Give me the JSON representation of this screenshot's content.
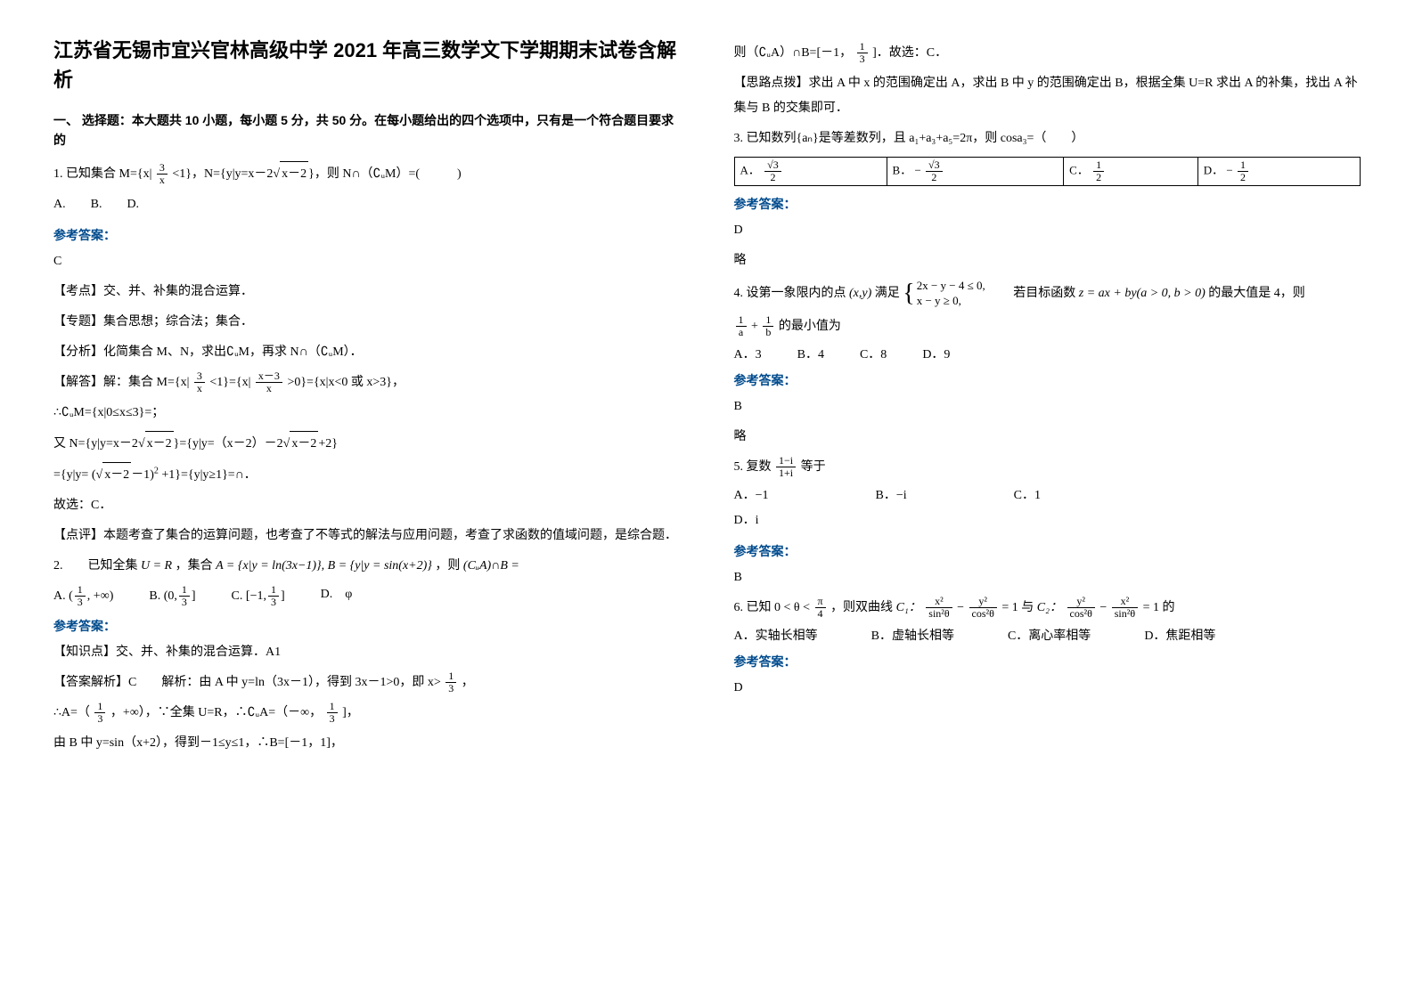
{
  "title": "江苏省无锡市宜兴官林高级中学 2021 年高三数学文下学期期末试卷含解析",
  "section1_head": "一、 选择题：本大题共 10 小题，每小题 5 分，共 50 分。在每小题给出的四个选项中，只有是一个符合题目要求的",
  "answer_label": "参考答案：",
  "q1_stem_a": "1. 已知集合 M={x|",
  "q1_stem_b": "<1}，N={y|y=x－2",
  "q1_stem_c": "}，则 N∩（∁ᵤM）=(　　　)",
  "q1_frac_num": "3",
  "q1_frac_den": "x",
  "q1_sqrt": "x－2",
  "q1_opts": "A.　　B.　　D.",
  "q1_ans": "C",
  "q1_p1": "【考点】交、并、补集的混合运算．",
  "q1_p2": "【专题】集合思想；综合法；集合．",
  "q1_p3": "【分析】化简集合 M、N，求出∁ᵤM，再求 N∩（∁ᵤM）．",
  "q1_s1_a": "【解答】解：集合 M={x|",
  "q1_s1_b": "<1}={x|",
  "q1_s1_c": ">0}={x|x<0 或 x>3}，",
  "q1_s1_frac2_num": "x－3",
  "q1_s1_frac2_den": "x",
  "q1_s2": "∴∁ᵤM={x|0≤x≤3}=；",
  "q1_s3_a": "又 N={y|y=x－2",
  "q1_s3_b": "}={y|y=（x－2）－2",
  "q1_s3_c": "+2}",
  "q1_s4_a": "={y|y=",
  "q1_s4_b": "+1}={y|y≥1}=∩．",
  "q1_s4_sqrt": "x－2",
  "q1_s4_minus1": "－1",
  "q1_s4_sq": "2",
  "q1_s5": "故选：C．",
  "q1_s6": "【点评】本题考查了集合的运算问题，也考查了不等式的解法与应用问题，考查了求函数的值域问题，是综合题．",
  "q2_a": "2.　　已知全集",
  "q2_b": "，集合",
  "q2_c": "，则",
  "q2_U": "U = R",
  "q2_A": "A = {x|y = ln(3x−1)}, B = {y|y = sin(x+2)}",
  "q2_end": "(CᵤA)∩B =",
  "q2_optA_a": "A.",
  "q2_optB_a": "B.",
  "q2_optC_a": "C.",
  "q2_optD_a": "D.　φ",
  "q2_optA_frac_n": "1",
  "q2_optA_frac_d": "3",
  "q2_optA_tail": ", +∞",
  "q2_optB_l": "0,",
  "q2_optB_frac_n": "1",
  "q2_optB_frac_d": "3",
  "q2_optC_l": "−1,",
  "q2_optC_frac_n": "1",
  "q2_optC_frac_d": "3",
  "q2_p1": "【知识点】交、并、补集的混合运算．A1",
  "q2_s1_a": "【答案解析】C　　解析：由 A 中 y=ln（3x－1），得到 3x－1>0，即 x>",
  "q2_s1_b": "，",
  "q2_s1_frac_n": "1",
  "q2_s1_frac_d": "3",
  "q2_s2_a": "∴A=（",
  "q2_s2_b": "，+∞），∵全集 U=R，∴∁ᵤA=（－∞，",
  "q2_s2_c": "]，",
  "q2_s3": "由 B 中 y=sin（x+2），得到－1≤y≤1，∴B=[－1，1]，",
  "rc1_a": "则（∁ᵤA）∩B=[－1，",
  "rc1_b": "]．故选：C．",
  "rc1_frac_n": "1",
  "rc1_frac_d": "3",
  "rc2": "【思路点拨】求出 A 中 x 的范围确定出 A，求出 B 中 y 的范围确定出 B，根据全集 U=R 求出 A 的补集，找出 A 补集与 B 的交集即可．",
  "q3_stem": "3. 已知数列{aₙ}是等差数列，且 a₁+a₃+a₅=2π，则 cosa₃=（　　）",
  "q3_A_lbl": "A．",
  "q3_B_lbl": "B．",
  "q3_C_lbl": "C．",
  "q3_D_lbl": "D．",
  "q3_A_num": "√3",
  "q3_A_den": "2",
  "q3_B_pre": "−",
  "q3_B_num": "√3",
  "q3_B_den": "2",
  "q3_C_num": "1",
  "q3_C_den": "2",
  "q3_D_pre": "−",
  "q3_D_num": "1",
  "q3_D_den": "2",
  "q3_ans": "D",
  "q3_ans2": "略",
  "q4_a": "4. 设第一象限内的点",
  "q4_xy": "(x,y)",
  "q4_b": "满足",
  "q4_case1": "2x − y − 4 ≤ 0,",
  "q4_case2": "x − y ≥ 0,",
  "q4_c": "　　若目标函数",
  "q4_z": "z = ax + by(a > 0, b > 0)",
  "q4_d": "的最大值是 4，则",
  "q4_frac1_n": "1",
  "q4_frac1_d": "a",
  "q4_plus": "+",
  "q4_frac2_n": "1",
  "q4_frac2_d": "b",
  "q4_e": "的最小值为",
  "q4_optA": "A．3",
  "q4_optB": "B．4",
  "q4_optC": "C．8",
  "q4_optD": "D．9",
  "q4_ans": "B",
  "q4_ans2": "略",
  "q5_a": "5. 复数",
  "q5_num": "1−i",
  "q5_den": "1+i",
  "q5_b": "等于",
  "q5_optA": "A．−1",
  "q5_optB": "B．−i",
  "q5_optC": "C．1",
  "q5_optD": "D．i",
  "q5_ans": "B",
  "q6_a": "6. 已知",
  "q6_range_a": "0 < θ <",
  "q6_range_n": "π",
  "q6_range_d": "4",
  "q6_b": "，则双曲线",
  "q6_c1": "C₁：",
  "q6_c1_eq_a": "x²",
  "q6_c1_eq_b": "sin²θ",
  "q6_c1_eq_c": "y²",
  "q6_c1_eq_d": "cos²θ",
  "q6_c1_eq_e": "= 1",
  "q6_c": "与",
  "q6_c2": "C₂：",
  "q6_c2_eq_a": "y²",
  "q6_c2_eq_b": "cos²θ",
  "q6_c2_eq_c": "x²",
  "q6_c2_eq_d": "sin²θ",
  "q6_c2_eq_e": "= 1",
  "q6_d": "的",
  "q6_optA": "A．实轴长相等",
  "q6_optB": "B．虚轴长相等",
  "q6_optC": "C．离心率相等",
  "q6_optD": "D．焦距相等",
  "q6_ans": "D"
}
